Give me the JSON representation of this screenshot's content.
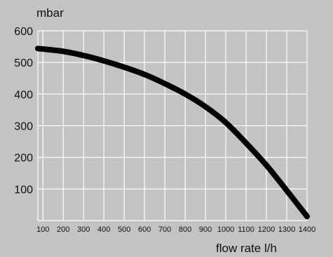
{
  "chart_data": {
    "type": "line",
    "title": "",
    "xlabel": "flow rate l/h",
    "ylabel": "mbar",
    "xlim": [
      75,
      1400
    ],
    "ylim": [
      0,
      600
    ],
    "x_ticks": [
      100,
      200,
      300,
      400,
      500,
      600,
      700,
      800,
      900,
      1000,
      1100,
      1200,
      1300,
      1400
    ],
    "y_ticks": [
      100,
      200,
      300,
      400,
      500,
      600
    ],
    "grid": true,
    "colors": {
      "background": "#c3c3c3",
      "grid": "#ffffff",
      "curve": "#000000"
    },
    "series": [
      {
        "x": [
          75,
          200,
          300,
          400,
          500,
          600,
          700,
          800,
          900,
          1000,
          1100,
          1200,
          1300,
          1400
        ],
        "y": [
          544,
          535,
          522,
          505,
          485,
          462,
          433,
          400,
          360,
          310,
          245,
          175,
          95,
          13
        ]
      }
    ]
  }
}
